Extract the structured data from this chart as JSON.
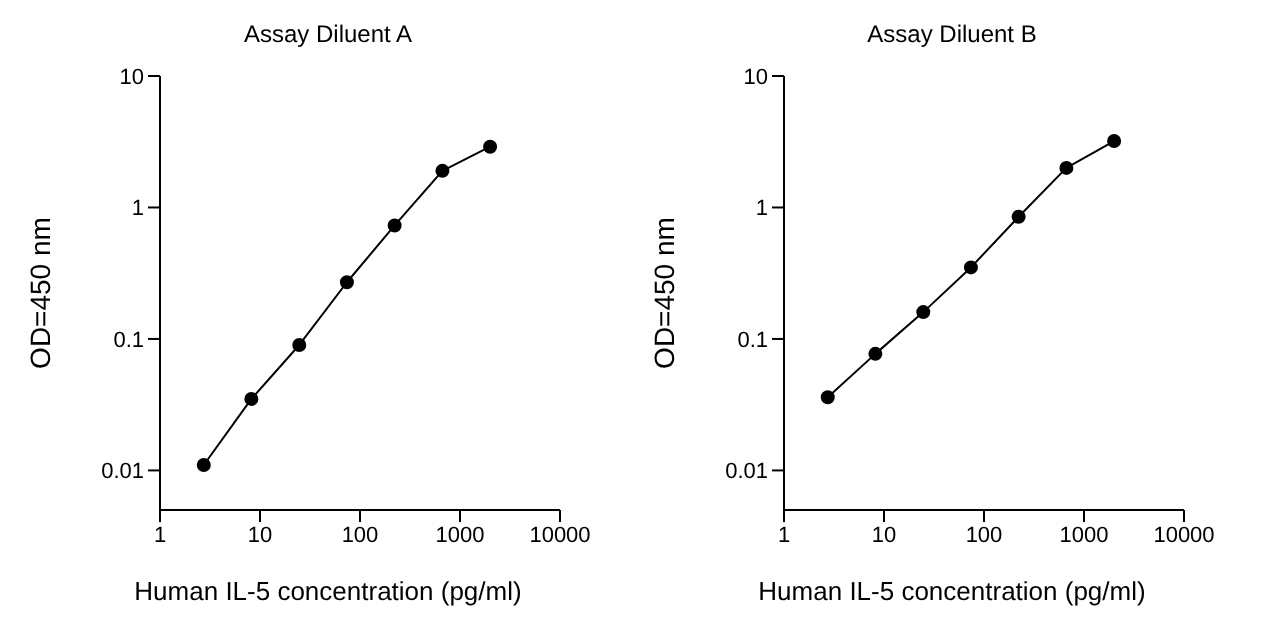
{
  "chart_data": [
    {
      "type": "line",
      "title": "Assay Diluent A",
      "xlabel": "Human IL-5 concentration (pg/ml)",
      "ylabel": "OD=450 nm",
      "log": "xy",
      "marker": "circle",
      "line_style": "solid",
      "grid": false,
      "legend": false,
      "series": [
        {
          "color": "#000000",
          "x": [
            2.74,
            8.2,
            24.7,
            74,
            222,
            667,
            2000
          ],
          "values": [
            0.011,
            0.035,
            0.09,
            0.27,
            0.73,
            1.9,
            2.9
          ]
        }
      ],
      "xlim": [
        1,
        10000
      ],
      "xticks": [
        1,
        10,
        100,
        1000,
        10000
      ],
      "ylim": [
        0.005,
        10
      ],
      "yticks": [
        0.01,
        0.1,
        1,
        10
      ]
    },
    {
      "type": "line",
      "title": "Assay Diluent B",
      "xlabel": "Human IL-5 concentration (pg/ml)",
      "ylabel": "OD=450 nm",
      "log": "xy",
      "marker": "circle",
      "line_style": "solid",
      "grid": false,
      "legend": false,
      "series": [
        {
          "color": "#000000",
          "x": [
            2.74,
            8.2,
            24.7,
            74,
            222,
            667,
            2000
          ],
          "values": [
            0.036,
            0.077,
            0.16,
            0.35,
            0.85,
            2.0,
            3.2
          ]
        }
      ],
      "xlim": [
        1,
        10000
      ],
      "xticks": [
        1,
        10,
        100,
        1000,
        10000
      ],
      "ylim": [
        0.005,
        10
      ],
      "yticks": [
        0.01,
        0.1,
        1,
        10
      ]
    }
  ]
}
